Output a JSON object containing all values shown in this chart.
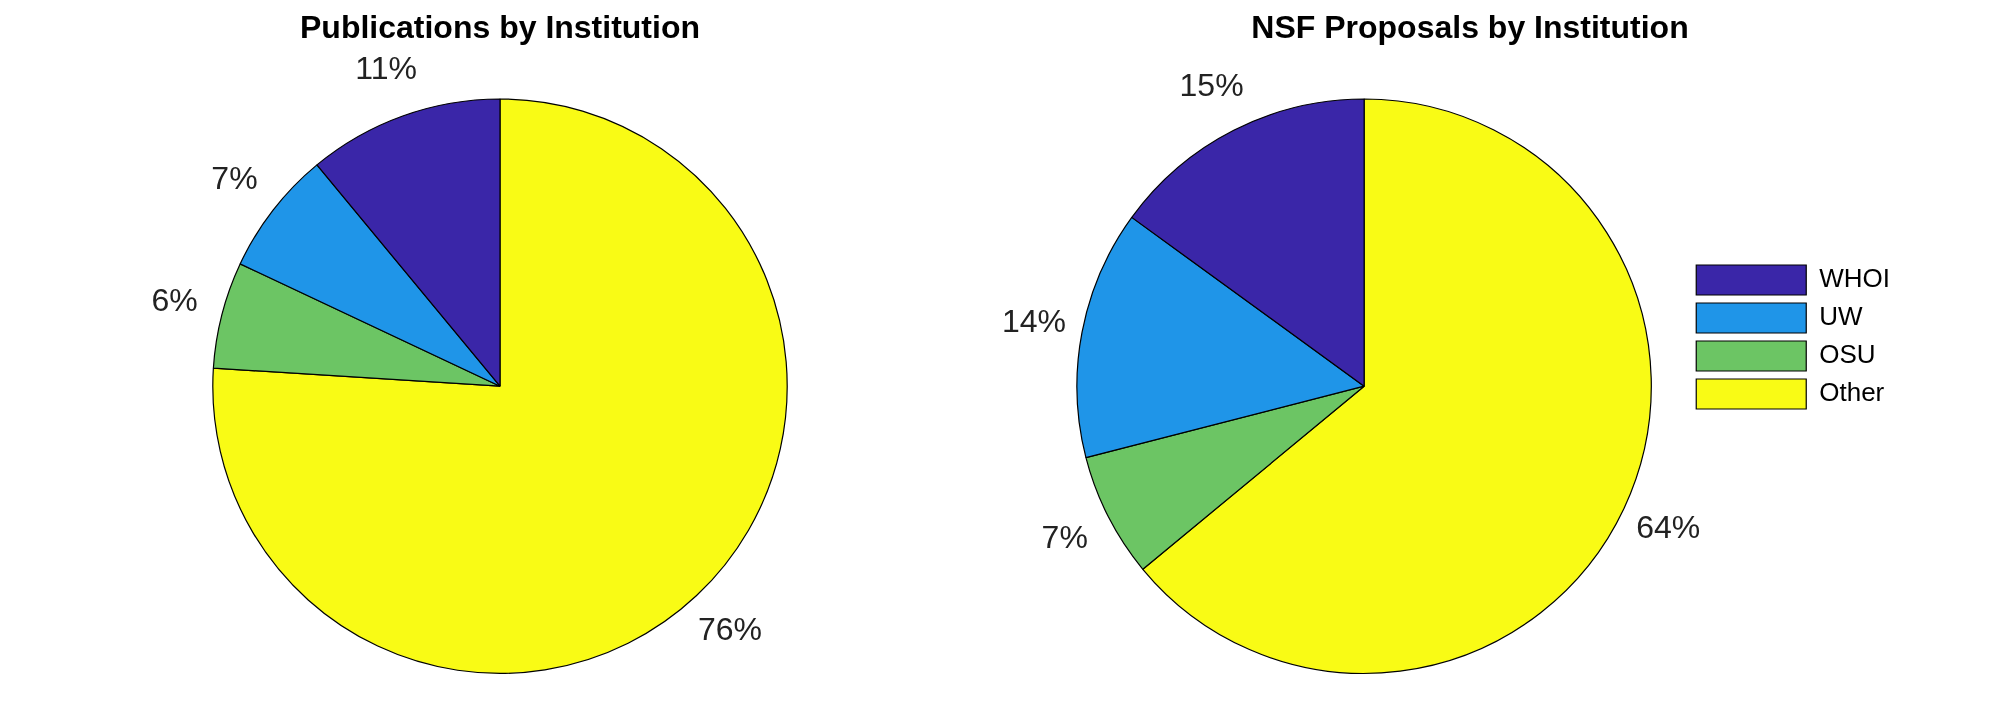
{
  "chart_data": [
    {
      "type": "pie",
      "title": "Publications by Institution",
      "categories": [
        null,
        null,
        null,
        null
      ],
      "values": [
        11,
        7,
        6,
        76
      ],
      "value_labels": [
        "11%",
        "7%",
        "6%",
        "76%"
      ],
      "colors": [
        "#3a26a8",
        "#1f95e8",
        "#6cc564",
        "#f9fb15"
      ],
      "legend": false
    },
    {
      "type": "pie",
      "title": "NSF Proposals by Institution",
      "categories": [
        "WHOI",
        "UW",
        "OSU",
        "Other"
      ],
      "values": [
        15,
        14,
        7,
        64
      ],
      "value_labels": [
        "15%",
        "14%",
        "7%",
        "64%"
      ],
      "colors": [
        "#3a26a8",
        "#1f95e8",
        "#6cc564",
        "#f9fb15"
      ],
      "legend": "right"
    }
  ]
}
